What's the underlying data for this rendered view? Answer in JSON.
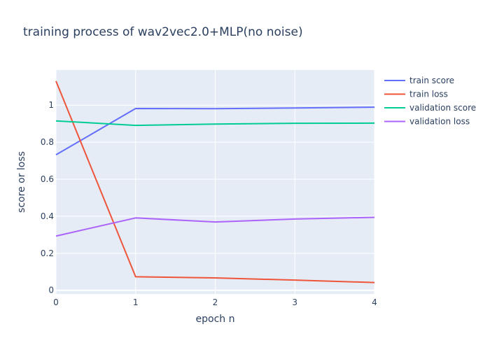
{
  "chart_data": {
    "type": "line",
    "title": "training process of wav2vec2.0+MLP(no noise)",
    "xlabel": "epoch n",
    "ylabel": "score or loss",
    "xlim": [
      0,
      4
    ],
    "ylim": [
      -0.02,
      1.19
    ],
    "xticks": [
      0,
      1,
      2,
      3,
      4
    ],
    "yticks": [
      0,
      0.2,
      0.4,
      0.6,
      0.8,
      1
    ],
    "xtick_labels": [
      "0",
      "1",
      "2",
      "3",
      "4"
    ],
    "ytick_labels": [
      "0",
      "0.2",
      "0.4",
      "0.6",
      "0.8",
      "1"
    ],
    "grid": true,
    "legend_position": "right",
    "x": [
      0,
      1,
      2,
      3,
      4
    ],
    "series": [
      {
        "name": "train score",
        "color": "#636efa",
        "values": [
          0.732,
          0.982,
          0.981,
          0.985,
          0.989
        ]
      },
      {
        "name": "train loss",
        "color": "#ef553b",
        "values": [
          1.13,
          0.073,
          0.067,
          0.055,
          0.042
        ]
      },
      {
        "name": "validation score",
        "color": "#00cc96",
        "values": [
          0.915,
          0.891,
          0.898,
          0.902,
          0.903
        ]
      },
      {
        "name": "validation loss",
        "color": "#ab63fa",
        "values": [
          0.293,
          0.391,
          0.369,
          0.385,
          0.394
        ]
      }
    ]
  },
  "colors": {
    "plot_background": "#e5ecf6",
    "grid": "#ffffff",
    "text": "#2a3f5f"
  }
}
